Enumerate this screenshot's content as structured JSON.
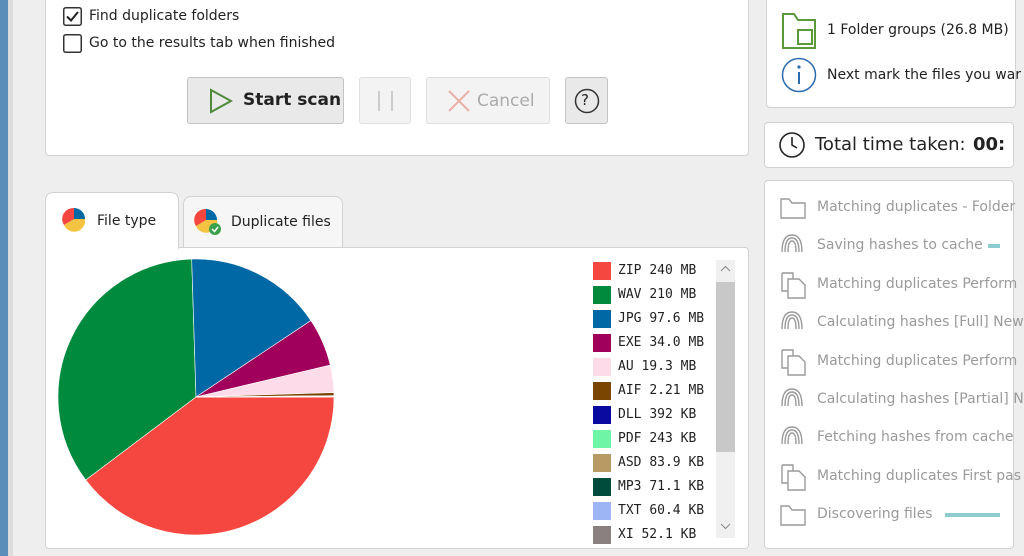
{
  "options": [
    {
      "label": "Find duplicate folders",
      "checked": true
    },
    {
      "label": "Go to the results tab when finished",
      "checked": false
    }
  ],
  "buttons": {
    "start": "Start scan",
    "cancel": "Cancel",
    "help": "?"
  },
  "summary": {
    "folder_groups": "1 Folder groups (26.8 MB)",
    "next_step": "Next mark the files you war"
  },
  "time": {
    "label": "Total time taken:",
    "value": "00:"
  },
  "tabs": [
    "File type",
    "Duplicate files"
  ],
  "steps": [
    "Matching duplicates - Folder",
    "Saving hashes to cache",
    "Matching duplicates Perform",
    "Calculating hashes [Full] New",
    "Matching duplicates Perform",
    "Calculating hashes [Partial] N",
    "Fetching hashes from cache",
    "Matching duplicates First pas",
    "Discovering files"
  ],
  "chart_data": {
    "type": "pie",
    "categories": [
      "ZIP",
      "WAV",
      "JPG",
      "EXE",
      "AU",
      "AIF",
      "DLL",
      "PDF",
      "ASD",
      "MP3",
      "TXT",
      "XI"
    ],
    "values": [
      240,
      210,
      97.6,
      34.0,
      19.3,
      2.21,
      0.392,
      0.243,
      0.0839,
      0.0711,
      0.0604,
      0.0521
    ],
    "value_labels": [
      "240 MB",
      "210 MB",
      "97.6 MB",
      "34.0 MB",
      "19.3 MB",
      "2.21 MB",
      "392 KB",
      "243 KB",
      "83.9 KB",
      "71.1 KB",
      "60.4 KB",
      "52.1 KB"
    ],
    "colors": [
      "#f5473f",
      "#008a3e",
      "#0068a5",
      "#a0005b",
      "#fddbe8",
      "#7a4500",
      "#0a0aa0",
      "#6ef5a5",
      "#b89a64",
      "#004c3c",
      "#9db4f5",
      "#8a8080"
    ]
  }
}
